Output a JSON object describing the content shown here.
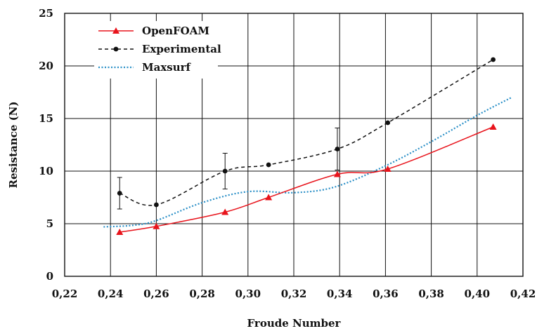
{
  "chart_data": {
    "type": "line",
    "title": "",
    "xlabel": "Froude Number",
    "ylabel": "Resistance (N)",
    "xlim": [
      0.22,
      0.42
    ],
    "ylim": [
      0,
      25
    ],
    "x_ticks": [
      "0,22",
      "0,24",
      "0,26",
      "0,28",
      "0,30",
      "0,32",
      "0,34",
      "0,36",
      "0,38",
      "0,40",
      "0,42"
    ],
    "y_ticks": [
      "0",
      "5",
      "10",
      "15",
      "20",
      "25"
    ],
    "grid": true,
    "legend_position": "top-left",
    "series": [
      {
        "name": "OpenFOAM",
        "color": "#e8141c",
        "style": "solid",
        "marker": "triangle",
        "x": [
          0.244,
          0.26,
          0.29,
          0.309,
          0.339,
          0.361,
          0.407
        ],
        "y": [
          4.2,
          4.75,
          6.1,
          7.5,
          9.7,
          10.2,
          14.2
        ]
      },
      {
        "name": "Experimental",
        "color": "#111111",
        "style": "dashed",
        "marker": "circle",
        "x": [
          0.244,
          0.26,
          0.29,
          0.309,
          0.339,
          0.361,
          0.407
        ],
        "y": [
          7.9,
          6.8,
          10.0,
          10.6,
          12.1,
          14.6,
          20.6
        ],
        "error": [
          1.5,
          0,
          1.7,
          0,
          2.0,
          0,
          0
        ]
      },
      {
        "name": "Maxsurf",
        "color": "#2a8fc7",
        "style": "dotted",
        "marker": "none",
        "x": [
          0.237,
          0.25,
          0.26,
          0.28,
          0.3,
          0.32,
          0.338,
          0.36,
          0.38,
          0.4,
          0.415
        ],
        "y": [
          4.7,
          4.85,
          5.3,
          7.0,
          8.05,
          7.95,
          8.5,
          10.5,
          12.8,
          15.3,
          17.0
        ]
      }
    ]
  }
}
